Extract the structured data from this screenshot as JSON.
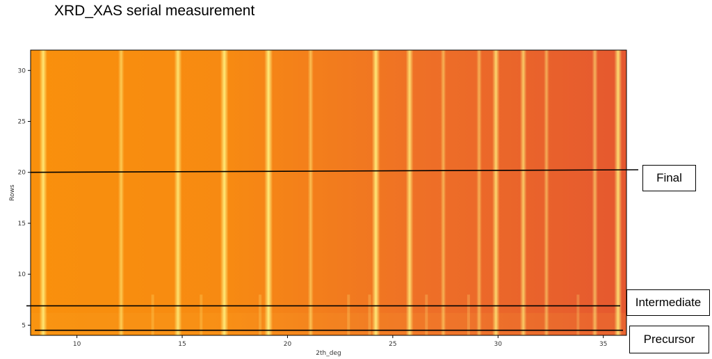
{
  "title": "XRD_XAS serial measurement",
  "chart_data": {
    "type": "heatmap",
    "title": "XRD_XAS serial measurement",
    "xlabel": "2th_deg",
    "ylabel": "Rows",
    "xlim": [
      7.8,
      36.1
    ],
    "ylim": [
      4,
      32
    ],
    "xticks": [
      10,
      15,
      20,
      25,
      30,
      35
    ],
    "yticks": [
      5,
      10,
      15,
      20,
      25,
      30
    ],
    "xtick_labels": [
      "10",
      "15",
      "20",
      "25",
      "30",
      "35"
    ],
    "ytick_labels": [
      "5",
      "10",
      "15",
      "20",
      "25",
      "30"
    ],
    "colormap": "inferno-like (orange to yellow)",
    "background_gradient": [
      "#f9900c",
      "#f78a12",
      "#ee6f27",
      "#e5582f"
    ],
    "peak_color": "#ffec7a",
    "peaks": [
      {
        "x": 8.4,
        "intensity": 0.9
      },
      {
        "x": 12.1,
        "intensity": 0.45
      },
      {
        "x": 14.8,
        "intensity": 0.85
      },
      {
        "x": 17.0,
        "intensity": 0.95
      },
      {
        "x": 19.1,
        "intensity": 1.0
      },
      {
        "x": 21.1,
        "intensity": 0.35
      },
      {
        "x": 24.2,
        "intensity": 0.95
      },
      {
        "x": 25.8,
        "intensity": 0.8
      },
      {
        "x": 27.4,
        "intensity": 0.3
      },
      {
        "x": 29.1,
        "intensity": 0.3
      },
      {
        "x": 29.9,
        "intensity": 0.75
      },
      {
        "x": 31.2,
        "intensity": 0.6
      },
      {
        "x": 32.3,
        "intensity": 0.3
      },
      {
        "x": 34.6,
        "intensity": 0.4
      },
      {
        "x": 35.7,
        "intensity": 0.85
      }
    ],
    "annotations": [
      {
        "label": "Final",
        "row": 20
      },
      {
        "label": "Intermediate",
        "row": 6.9
      },
      {
        "label": "Precursor",
        "row": 4.5
      }
    ]
  }
}
